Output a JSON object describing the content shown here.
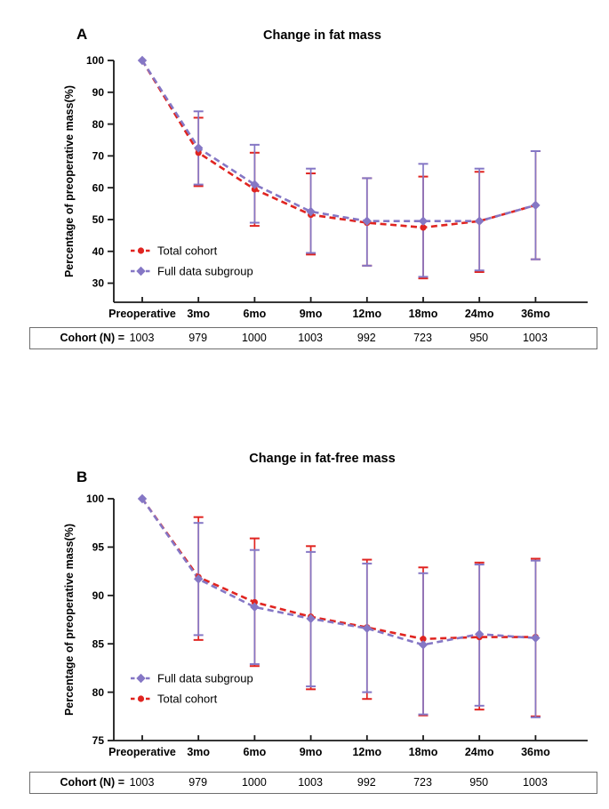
{
  "colors": {
    "total_cohort": "#e02420",
    "full_data_subgroup": "#8577c5",
    "axis": "#1a1a1a",
    "table_border": "#6e6e6e"
  },
  "chart_data": [
    {
      "type": "line",
      "panel_letter": "A",
      "title": "Change in fat mass",
      "xlabel": "",
      "ylabel": "Percentage of preoperative mass(%)",
      "categories": [
        "Preoperative",
        "3mo",
        "6mo",
        "9mo",
        "12mo",
        "18mo",
        "24mo",
        "36mo"
      ],
      "ylim": [
        24,
        100
      ],
      "yticks": [
        30,
        40,
        50,
        60,
        70,
        80,
        90,
        100
      ],
      "grid": false,
      "legend_position": "inside-lower-left",
      "legend_series_order": [
        0,
        1
      ],
      "series": [
        {
          "name": "Total cohort",
          "color": "#e02420",
          "marker": "circle",
          "linestyle": "dashed",
          "values": [
            100,
            71,
            59.5,
            51.5,
            49,
            47.5,
            49.5,
            54.5
          ],
          "err_low": [
            null,
            60.5,
            48,
            39,
            35.5,
            31.5,
            33.5,
            37.5
          ],
          "err_high": [
            null,
            82,
            71,
            64.5,
            63,
            63.5,
            65,
            71.5
          ]
        },
        {
          "name": "Full data subgroup",
          "color": "#8577c5",
          "marker": "diamond",
          "linestyle": "dashed",
          "values": [
            100,
            72.5,
            61,
            52.5,
            49.5,
            49.5,
            49.5,
            54.5
          ],
          "err_low": [
            null,
            61,
            49,
            39.5,
            35.5,
            32,
            34,
            37.5
          ],
          "err_high": [
            null,
            84,
            73.5,
            66,
            63,
            67.5,
            66,
            71.5
          ]
        }
      ],
      "cohort_row": {
        "label": "Cohort (N) =",
        "values": [
          "1003",
          "979",
          "1000",
          "1003",
          "992",
          "723",
          "950",
          "1003"
        ]
      }
    },
    {
      "type": "line",
      "panel_letter": "B",
      "title": "Change in fat-free mass",
      "xlabel": "",
      "ylabel": "Percentage of preoperative mass(%)",
      "categories": [
        "Preoperative",
        "3mo",
        "6mo",
        "9mo",
        "12mo",
        "18mo",
        "24mo",
        "36mo"
      ],
      "ylim": [
        75,
        100
      ],
      "yticks": [
        75,
        80,
        85,
        90,
        95,
        100
      ],
      "grid": false,
      "legend_position": "inside-lower-left",
      "legend_series_order": [
        1,
        0
      ],
      "series": [
        {
          "name": "Total cohort",
          "color": "#e02420",
          "marker": "circle",
          "linestyle": "dashed",
          "values": [
            100,
            91.9,
            89.3,
            87.8,
            86.7,
            85.5,
            85.7,
            85.7
          ],
          "err_low": [
            null,
            85.4,
            82.7,
            80.3,
            79.3,
            77.6,
            78.2,
            77.5
          ],
          "err_high": [
            null,
            98.1,
            95.9,
            95.1,
            93.7,
            92.9,
            93.4,
            93.8
          ]
        },
        {
          "name": "Full data subgroup",
          "color": "#8577c5",
          "marker": "diamond",
          "linestyle": "dashed",
          "values": [
            100,
            91.7,
            88.8,
            87.6,
            86.6,
            84.9,
            86.0,
            85.6
          ],
          "err_low": [
            null,
            85.9,
            82.9,
            80.6,
            80.0,
            77.7,
            78.6,
            77.4
          ],
          "err_high": [
            null,
            97.5,
            94.7,
            94.5,
            93.3,
            92.3,
            93.2,
            93.6
          ]
        }
      ],
      "cohort_row": {
        "label": "Cohort (N) =",
        "values": [
          "1003",
          "979",
          "1000",
          "1003",
          "992",
          "723",
          "950",
          "1003"
        ]
      }
    }
  ]
}
